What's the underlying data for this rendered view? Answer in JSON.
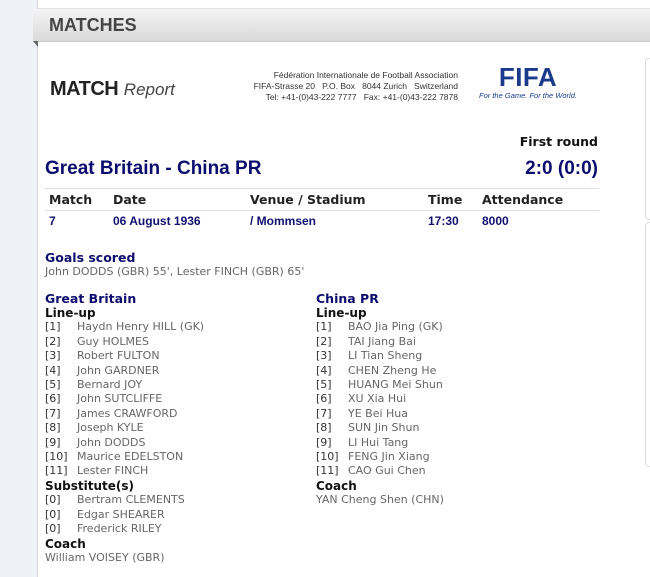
{
  "section_title": "MATCHES",
  "report": {
    "logo_bold": "MATCH",
    "logo_italic": "Report"
  },
  "federation": {
    "name": "Fédération Internationale de Football Association",
    "address": "FIFA-Strasse 20   P.O. Box   8044 Zurich   Switzerland",
    "phone": "Tel: +41-(0)43-222 7777   Fax: +41-(0)43-222 7878",
    "logo_text": "FIFA",
    "tagline": "For the Game. For the World."
  },
  "colors": {
    "heading": "#0c0c6e",
    "fifa_blue": "#1a3b8c",
    "player_text": "#666666"
  },
  "match": {
    "round": "First round",
    "title": "Great Britain - China PR",
    "score": "2:0 (0:0)",
    "headers": {
      "match": "Match",
      "date": "Date",
      "venue": "Venue / Stadium",
      "time": "Time",
      "attendance": "Attendance"
    },
    "values": {
      "match": "7",
      "date": "06 August 1936",
      "venue": "/ Mommsen",
      "time": "17:30",
      "attendance": "8000"
    }
  },
  "goals": {
    "label": "Goals scored",
    "text": "John DODDS (GBR) 55', Lester FINCH (GBR) 65'"
  },
  "teams": [
    {
      "name": "Great Britain",
      "lineup_label": "Line-up",
      "lineup": [
        {
          "num": "[1]",
          "name": "Haydn Henry HILL (GK)"
        },
        {
          "num": "[2]",
          "name": "Guy HOLMES"
        },
        {
          "num": "[3]",
          "name": "Robert FULTON"
        },
        {
          "num": "[4]",
          "name": "John GARDNER"
        },
        {
          "num": "[5]",
          "name": "Bernard JOY"
        },
        {
          "num": "[6]",
          "name": "John SUTCLIFFE"
        },
        {
          "num": "[7]",
          "name": "James CRAWFORD"
        },
        {
          "num": "[8]",
          "name": "Joseph KYLE"
        },
        {
          "num": "[9]",
          "name": "John DODDS"
        },
        {
          "num": "[10]",
          "name": "Maurice EDELSTON"
        },
        {
          "num": "[11]",
          "name": "Lester FINCH"
        }
      ],
      "subs_label": "Substitute(s)",
      "subs": [
        {
          "num": "[0]",
          "name": "Bertram CLEMENTS"
        },
        {
          "num": "[0]",
          "name": "Edgar SHEARER"
        },
        {
          "num": "[0]",
          "name": "Frederick RILEY"
        }
      ],
      "coach_label": "Coach",
      "coach": "William VOISEY (GBR)"
    },
    {
      "name": "China PR",
      "lineup_label": "Line-up",
      "lineup": [
        {
          "num": "[1]",
          "name": "BAO Jia Ping (GK)"
        },
        {
          "num": "[2]",
          "name": "TAI Jiang Bai"
        },
        {
          "num": "[3]",
          "name": "LI Tian Sheng"
        },
        {
          "num": "[4]",
          "name": "CHEN Zheng He"
        },
        {
          "num": "[5]",
          "name": "HUANG Mei Shun"
        },
        {
          "num": "[6]",
          "name": "XU Xia Hui"
        },
        {
          "num": "[7]",
          "name": "YE Bei Hua"
        },
        {
          "num": "[8]",
          "name": "SUN Jin Shun"
        },
        {
          "num": "[9]",
          "name": "LI Hui Tang"
        },
        {
          "num": "[10]",
          "name": "FENG Jin Xiang"
        },
        {
          "num": "[11]",
          "name": "CAO Gui Chen"
        }
      ],
      "coach_label": "Coach",
      "coach": "YAN Cheng Shen (CHN)"
    }
  ]
}
